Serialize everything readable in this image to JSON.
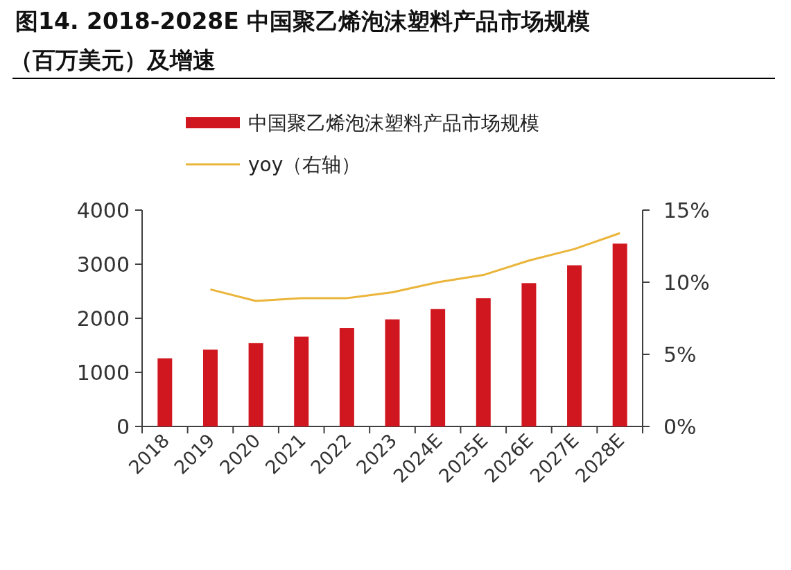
{
  "chart_data": {
    "type": "bar",
    "title": "图14. 2018-2028E 中国聚乙烯泡沫塑料产品市场规模（百万美元）及增速",
    "categories": [
      "2018",
      "2019",
      "2020",
      "2021",
      "2022",
      "2023",
      "2024E",
      "2025E",
      "2026E",
      "2027E",
      "2028E"
    ],
    "series": [
      {
        "name": "中国聚乙烯泡沫塑料产品市场规模",
        "color": "#d0171f",
        "values": [
          1260,
          1420,
          1540,
          1660,
          1820,
          1980,
          2170,
          2370,
          2650,
          2980,
          3380
        ]
      },
      {
        "name": "yoy（右轴）",
        "type": "line",
        "axis": "y2",
        "color": "#eab53a",
        "values": [
          null,
          9.5,
          8.7,
          8.9,
          8.9,
          9.3,
          10.0,
          10.5,
          11.5,
          12.3,
          13.4
        ]
      }
    ],
    "ylim": [
      0,
      4000
    ],
    "yticks": [
      0,
      1000,
      2000,
      3000,
      4000
    ],
    "y2lim": [
      0,
      15
    ],
    "y2ticks": [
      {
        "value": 0,
        "label": "0%"
      },
      {
        "value": 5,
        "label": "5%"
      },
      {
        "value": 10,
        "label": "10%"
      },
      {
        "value": 15,
        "label": "15%"
      }
    ],
    "legend": "top",
    "grid": false
  }
}
